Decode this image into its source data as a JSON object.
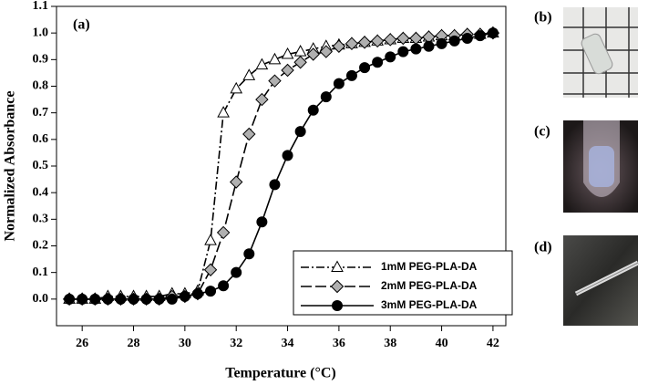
{
  "chart_data": {
    "type": "line",
    "panel_labels": [
      "(a)",
      "(b)",
      "(c)",
      "(d)"
    ],
    "xlabel": "Temperature (°C)",
    "ylabel": "Normalized Absorbance",
    "x": [
      25.5,
      26,
      26.5,
      27,
      27.5,
      28,
      28.5,
      29,
      29.5,
      30,
      30.5,
      31,
      31.5,
      32,
      32.5,
      33,
      33.5,
      34,
      34.5,
      35,
      35.5,
      36,
      36.5,
      37,
      37.5,
      38,
      38.5,
      39,
      39.5,
      40,
      40.5,
      41,
      41.5,
      42
    ],
    "series": [
      {
        "name": "1mM PEG-PLA-DA",
        "color": "#ffffff",
        "marker": "triangle",
        "dash": "9,3,2,3",
        "values": [
          0,
          0,
          0,
          0.01,
          0.01,
          0.01,
          0.01,
          0.01,
          0.02,
          0.02,
          0.03,
          0.22,
          0.7,
          0.79,
          0.84,
          0.88,
          0.9,
          0.92,
          0.93,
          0.94,
          0.95,
          0.955,
          0.96,
          0.965,
          0.97,
          0.975,
          0.98,
          0.98,
          0.985,
          0.99,
          0.99,
          0.995,
          0.995,
          1.0
        ]
      },
      {
        "name": "2mM PEG-PLA-DA",
        "color": "#b0b0b0",
        "marker": "diamond",
        "dash": "12,4",
        "values": [
          0,
          0,
          0,
          0,
          0,
          0,
          0,
          0,
          0.01,
          0.01,
          0.02,
          0.11,
          0.25,
          0.44,
          0.62,
          0.75,
          0.82,
          0.86,
          0.89,
          0.92,
          0.93,
          0.95,
          0.96,
          0.965,
          0.97,
          0.975,
          0.98,
          0.98,
          0.985,
          0.99,
          0.99,
          0.995,
          0.995,
          1.0
        ]
      },
      {
        "name": "3mM PEG-PLA-DA",
        "color": "#000000",
        "marker": "circle",
        "dash": "none",
        "values": [
          0,
          0,
          0,
          0,
          0,
          0,
          0,
          0,
          0,
          0.01,
          0.02,
          0.03,
          0.05,
          0.1,
          0.17,
          0.29,
          0.43,
          0.54,
          0.63,
          0.71,
          0.76,
          0.81,
          0.84,
          0.87,
          0.89,
          0.91,
          0.93,
          0.94,
          0.95,
          0.96,
          0.97,
          0.98,
          0.99,
          1.0
        ]
      }
    ],
    "xlim": [
      25,
      42.5
    ],
    "xticks": [
      26,
      28,
      30,
      32,
      34,
      36,
      38,
      40,
      42
    ],
    "ylim": [
      -0.1,
      1.1
    ],
    "yticks": [
      {
        "value": 0,
        "label": "0.0"
      },
      {
        "value": 0.1,
        "label": "0.1"
      },
      {
        "value": 0.2,
        "label": "0.2"
      },
      {
        "value": 0.3,
        "label": "0.3"
      },
      {
        "value": 0.4,
        "label": "0.4"
      },
      {
        "value": 0.5,
        "label": "0.5"
      },
      {
        "value": 0.6,
        "label": "0.6"
      },
      {
        "value": 0.7,
        "label": "0.7"
      },
      {
        "value": 0.8,
        "label": "0.8"
      },
      {
        "value": 0.9,
        "label": "0.9"
      },
      {
        "value": 1,
        "label": "1.0"
      },
      {
        "value": 1.1,
        "label": "1.1"
      }
    ],
    "grid": false,
    "legend": "lower right"
  }
}
